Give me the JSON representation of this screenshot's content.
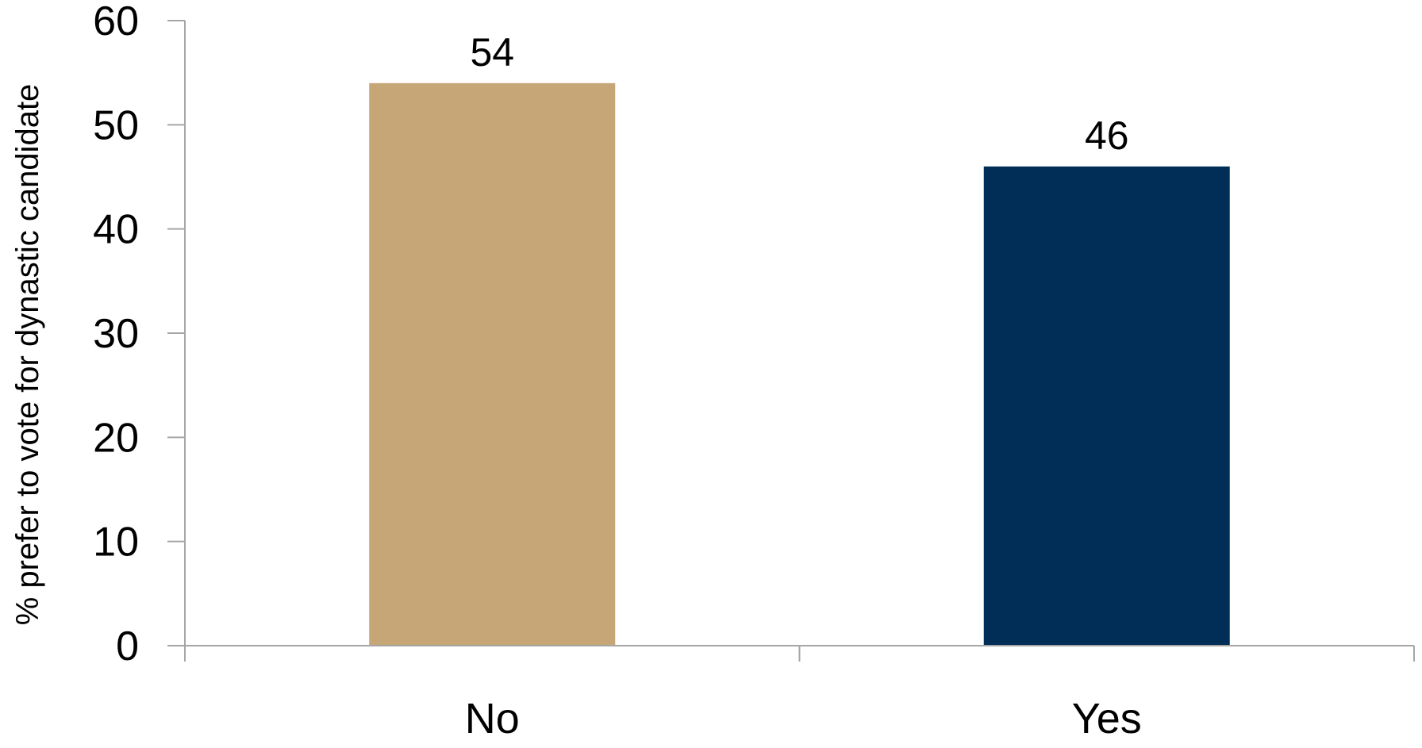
{
  "chart_data": {
    "type": "bar",
    "title": "",
    "xlabel": "",
    "ylabel": "% prefer to vote for dynastic candidate",
    "categories": [
      "No",
      "Yes"
    ],
    "values": [
      54,
      46
    ],
    "data_labels": [
      "54",
      "46"
    ],
    "colors": [
      "#c6a677",
      "#002e56"
    ],
    "ylim": [
      0,
      60
    ],
    "yticks": [
      0,
      10,
      20,
      30,
      40,
      50,
      60
    ],
    "grid": false,
    "legend": "none"
  }
}
